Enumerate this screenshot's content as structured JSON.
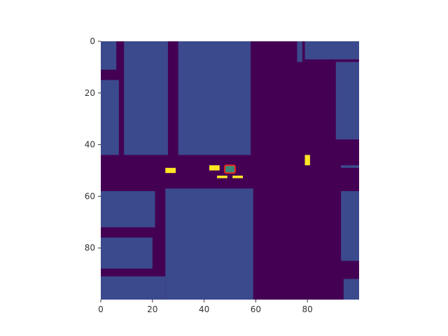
{
  "colors": {
    "background": "#440154",
    "block": "#3b4a8c",
    "vehicle": "#fde725",
    "ego_outline": "#e8291c",
    "ego_fill": "#3a8a78",
    "axis": "#333333"
  },
  "grid": {
    "x_range": [
      0,
      100
    ],
    "y_range": [
      0,
      100
    ],
    "x_ticks": [
      {
        "value": 0,
        "label": "0"
      },
      {
        "value": 20,
        "label": "20"
      },
      {
        "value": 40,
        "label": "40"
      },
      {
        "value": 60,
        "label": "60"
      },
      {
        "value": 80,
        "label": "80"
      }
    ],
    "y_ticks": [
      {
        "value": 0,
        "label": "0"
      },
      {
        "value": 20,
        "label": "20"
      },
      {
        "value": 40,
        "label": "40"
      },
      {
        "value": 60,
        "label": "60"
      },
      {
        "value": 80,
        "label": "80"
      }
    ]
  },
  "blocks": [
    {
      "name": "block-top-left-a",
      "x0": 0,
      "x1": 6,
      "y0": 0,
      "y1": 11
    },
    {
      "name": "block-top-left-b",
      "x0": 0,
      "x1": 7,
      "y0": 15,
      "y1": 44
    },
    {
      "name": "block-top-mid-left",
      "x0": 9,
      "x1": 26,
      "y0": 0,
      "y1": 44
    },
    {
      "name": "block-top-center",
      "x0": 30,
      "x1": 58,
      "y0": 0,
      "y1": 44
    },
    {
      "name": "block-top-right-strip",
      "x0": 76,
      "x1": 78,
      "y0": 0,
      "y1": 8
    },
    {
      "name": "block-top-right-a",
      "x0": 79,
      "x1": 100,
      "y0": 0,
      "y1": 7
    },
    {
      "name": "block-top-right-b",
      "x0": 91,
      "x1": 100,
      "y0": 8,
      "y1": 38
    },
    {
      "name": "block-mid-right",
      "x0": 93,
      "x1": 100,
      "y0": 48,
      "y1": 49
    },
    {
      "name": "block-bottom-left-a",
      "x0": 0,
      "x1": 21,
      "y0": 58,
      "y1": 72
    },
    {
      "name": "block-bottom-left-b",
      "x0": 0,
      "x1": 20,
      "y0": 76,
      "y1": 88
    },
    {
      "name": "block-bottom-left-c",
      "x0": 0,
      "x1": 25,
      "y0": 91,
      "y1": 100
    },
    {
      "name": "block-bottom-center",
      "x0": 25,
      "x1": 59,
      "y0": 57,
      "y1": 100
    },
    {
      "name": "block-bottom-right-a",
      "x0": 93,
      "x1": 100,
      "y0": 58,
      "y1": 85
    },
    {
      "name": "block-bottom-right-b",
      "x0": 94,
      "x1": 100,
      "y0": 92,
      "y1": 100
    }
  ],
  "vehicles": [
    {
      "name": "vehicle-1",
      "x0": 25,
      "x1": 29,
      "y0": 49,
      "y1": 51
    },
    {
      "name": "vehicle-2",
      "x0": 42,
      "x1": 46,
      "y0": 48,
      "y1": 50
    },
    {
      "name": "vehicle-3",
      "x0": 45,
      "x1": 49,
      "y0": 52,
      "y1": 53
    },
    {
      "name": "vehicle-4",
      "x0": 51,
      "x1": 55,
      "y0": 52,
      "y1": 53
    },
    {
      "name": "vehicle-5",
      "x0": 79,
      "x1": 81,
      "y0": 44,
      "y1": 48
    }
  ],
  "ego": {
    "x0": 48,
    "x1": 52,
    "y0": 48,
    "y1": 51
  }
}
